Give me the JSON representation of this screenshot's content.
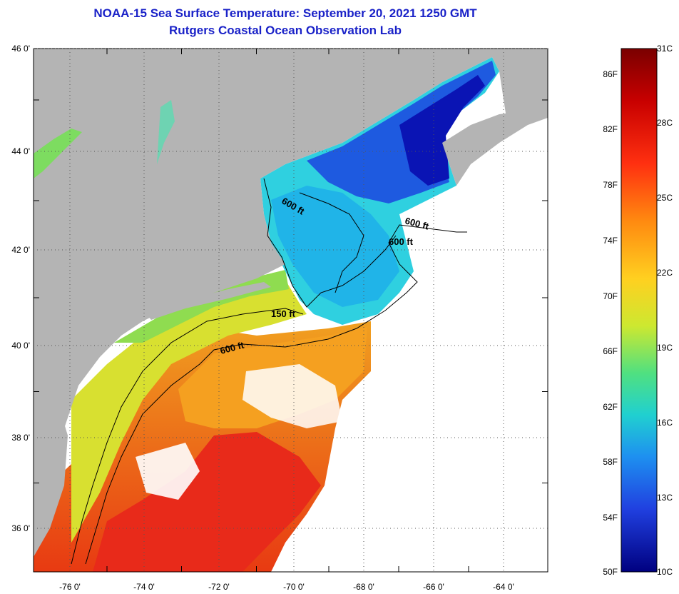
{
  "header": {
    "title": "NOAA-15 Sea Surface Temperature:  September 20, 2021 1250 GMT",
    "subtitle": "Rutgers Coastal Ocean Observation Lab"
  },
  "map": {
    "lat_labels": [
      "46 0'",
      "44 0'",
      "42 0'",
      "40 0'",
      "38 0'",
      "36 0'"
    ],
    "lon_labels": [
      "-76 0'",
      "-74 0'",
      "-72 0'",
      "-70 0'",
      "-68 0'",
      "-66 0'",
      "-64 0'"
    ],
    "contour_labels": [
      "600 ft",
      "600 ft",
      "600 ft",
      "150 ft",
      "600 ft"
    ],
    "land_color": "#b4b4b4",
    "nodata_color": "#ffffff"
  },
  "colorbar": {
    "fahrenheit_labels": [
      "86F",
      "82F",
      "78F",
      "74F",
      "70F",
      "66F",
      "62F",
      "58F",
      "54F",
      "50F"
    ],
    "celsius_labels": [
      "31C",
      "28C",
      "25C",
      "22C",
      "19C",
      "16C",
      "13C",
      "10C"
    ],
    "range_c": [
      10,
      31
    ],
    "colors": [
      "#7a0000",
      "#e01010",
      "#ff5a10",
      "#ffa500",
      "#f5e11a",
      "#a8e23a",
      "#2fe0a0",
      "#15a8e8",
      "#1f55e0",
      "#0a0aa8"
    ]
  }
}
